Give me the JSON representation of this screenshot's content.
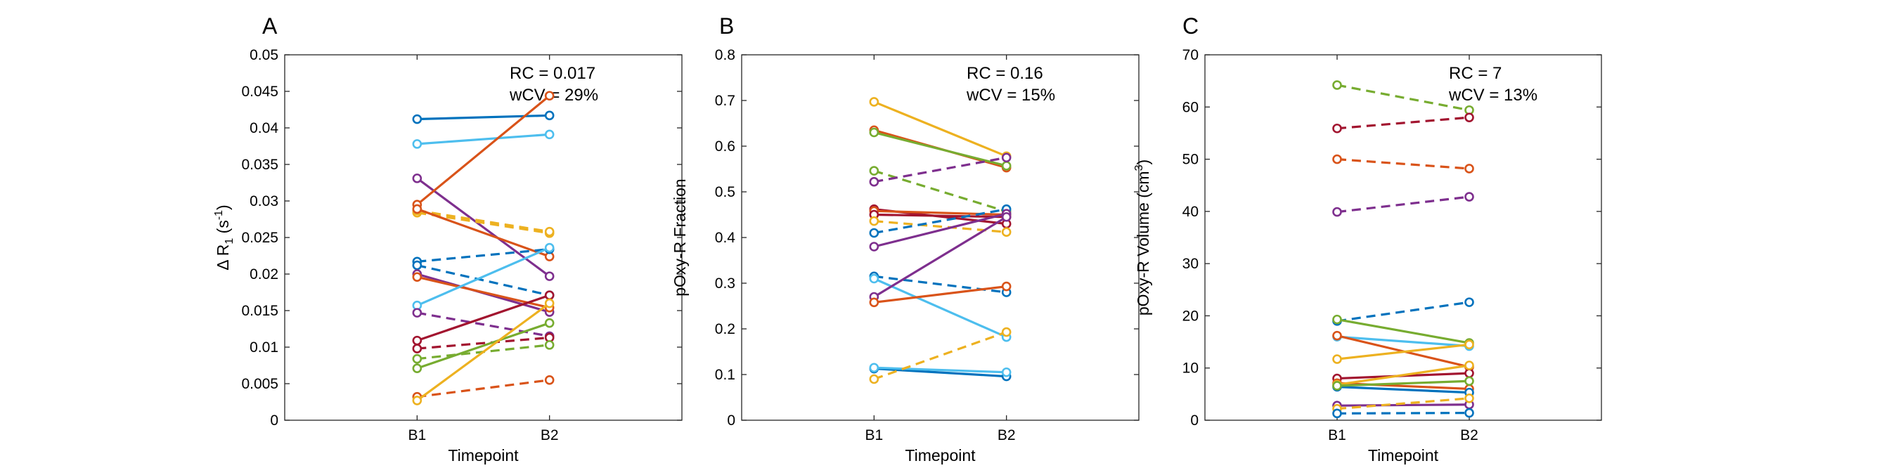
{
  "chart_data": [
    {
      "type": "line",
      "panel_label": "A",
      "xlabel": "Timepoint",
      "ylabel": "Δ R1 (s-1)",
      "ylabel_parts": {
        "pre": "Δ R",
        "sub": "1",
        "mid": " (s",
        "sup": "-1",
        "post": ")"
      },
      "categories": [
        "B1",
        "B2"
      ],
      "xlim": [
        0,
        3
      ],
      "ylim": [
        0,
        0.05
      ],
      "yticks": [
        0,
        0.005,
        0.01,
        0.015,
        0.02,
        0.025,
        0.03,
        0.035,
        0.04,
        0.045,
        0.05
      ],
      "ytick_labels": [
        "0",
        "0.005",
        "0.01",
        "0.015",
        "0.02",
        "0.025",
        "0.03",
        "0.035",
        "0.04",
        "0.045",
        "0.05"
      ],
      "grid": false,
      "annotations": [
        "RC = 0.017",
        "wCV = 29%"
      ],
      "series": [
        {
          "color": "#0072BD",
          "dash": false,
          "values": [
            0.0412,
            0.0417
          ]
        },
        {
          "color": "#4DBEEE",
          "dash": false,
          "values": [
            0.0378,
            0.0391
          ]
        },
        {
          "color": "#7E2F8E",
          "dash": false,
          "values": [
            0.0331,
            0.0197
          ]
        },
        {
          "color": "#D95319",
          "dash": false,
          "values": [
            0.0295,
            0.0444
          ]
        },
        {
          "color": "#EDB120",
          "dash": true,
          "values": [
            0.0284,
            0.0256
          ]
        },
        {
          "color": "#EDB120",
          "dash": true,
          "values": [
            0.0287,
            0.0258
          ]
        },
        {
          "color": "#D95319",
          "dash": false,
          "values": [
            0.0289,
            0.0224
          ]
        },
        {
          "color": "#0072BD",
          "dash": true,
          "values": [
            0.0217,
            0.0234
          ]
        },
        {
          "color": "#0072BD",
          "dash": true,
          "values": [
            0.0212,
            0.0171
          ]
        },
        {
          "color": "#7E2F8E",
          "dash": false,
          "values": [
            0.02,
            0.0148
          ]
        },
        {
          "color": "#D95319",
          "dash": false,
          "values": [
            0.0196,
            0.0154
          ]
        },
        {
          "color": "#4DBEEE",
          "dash": false,
          "values": [
            0.0157,
            0.0236
          ]
        },
        {
          "color": "#7E2F8E",
          "dash": true,
          "values": [
            0.0147,
            0.0115
          ]
        },
        {
          "color": "#A2142F",
          "dash": false,
          "values": [
            0.0109,
            0.0171
          ]
        },
        {
          "color": "#A2142F",
          "dash": true,
          "values": [
            0.0098,
            0.0113
          ]
        },
        {
          "color": "#77AC30",
          "dash": true,
          "values": [
            0.0084,
            0.0103
          ]
        },
        {
          "color": "#77AC30",
          "dash": false,
          "values": [
            0.0071,
            0.0133
          ]
        },
        {
          "color": "#D95319",
          "dash": true,
          "values": [
            0.0032,
            0.0055
          ]
        },
        {
          "color": "#EDB120",
          "dash": false,
          "values": [
            0.0027,
            0.016
          ]
        }
      ]
    },
    {
      "type": "line",
      "panel_label": "B",
      "xlabel": "Timepoint",
      "ylabel": "pOxy-R Fraction",
      "categories": [
        "B1",
        "B2"
      ],
      "xlim": [
        0,
        3
      ],
      "ylim": [
        0,
        0.8
      ],
      "yticks": [
        0,
        0.1,
        0.2,
        0.3,
        0.4,
        0.5,
        0.6,
        0.7,
        0.8
      ],
      "ytick_labels": [
        "0",
        "0.1",
        "0.2",
        "0.3",
        "0.4",
        "0.5",
        "0.6",
        "0.7",
        "0.8"
      ],
      "grid": false,
      "annotations": [
        "RC = 0.16",
        "wCV = 15%"
      ],
      "series": [
        {
          "color": "#EDB120",
          "dash": false,
          "values": [
            0.697,
            0.578
          ]
        },
        {
          "color": "#D95319",
          "dash": false,
          "values": [
            0.635,
            0.553
          ]
        },
        {
          "color": "#77AC30",
          "dash": false,
          "values": [
            0.63,
            0.557
          ]
        },
        {
          "color": "#77AC30",
          "dash": true,
          "values": [
            0.546,
            0.457
          ]
        },
        {
          "color": "#7E2F8E",
          "dash": true,
          "values": [
            0.522,
            0.575
          ]
        },
        {
          "color": "#A2142F",
          "dash": false,
          "values": [
            0.462,
            0.43
          ]
        },
        {
          "color": "#D95319",
          "dash": false,
          "values": [
            0.458,
            0.45
          ]
        },
        {
          "color": "#A2142F",
          "dash": false,
          "values": [
            0.45,
            0.445
          ]
        },
        {
          "color": "#EDB120",
          "dash": true,
          "values": [
            0.436,
            0.412
          ]
        },
        {
          "color": "#0072BD",
          "dash": true,
          "values": [
            0.41,
            0.462
          ]
        },
        {
          "color": "#7E2F8E",
          "dash": false,
          "values": [
            0.38,
            0.452
          ]
        },
        {
          "color": "#0072BD",
          "dash": true,
          "values": [
            0.315,
            0.28
          ]
        },
        {
          "color": "#4DBEEE",
          "dash": false,
          "values": [
            0.31,
            0.182
          ]
        },
        {
          "color": "#7E2F8E",
          "dash": false,
          "values": [
            0.27,
            0.445
          ]
        },
        {
          "color": "#D95319",
          "dash": false,
          "values": [
            0.258,
            0.293
          ]
        },
        {
          "color": "#0072BD",
          "dash": false,
          "values": [
            0.113,
            0.096
          ]
        },
        {
          "color": "#4DBEEE",
          "dash": false,
          "values": [
            0.115,
            0.105
          ]
        },
        {
          "color": "#EDB120",
          "dash": true,
          "values": [
            0.09,
            0.193
          ]
        }
      ]
    },
    {
      "type": "line",
      "panel_label": "C",
      "xlabel": "Timepoint",
      "ylabel": "pOxy-R Volume (cm3)",
      "ylabel_parts": {
        "pre": "pOxy-R Volume (cm",
        "sup": "3",
        "post": ")"
      },
      "categories": [
        "B1",
        "B2"
      ],
      "xlim": [
        0,
        3
      ],
      "ylim": [
        0,
        70
      ],
      "yticks": [
        0,
        10,
        20,
        30,
        40,
        50,
        60,
        70
      ],
      "ytick_labels": [
        "0",
        "10",
        "20",
        "30",
        "40",
        "50",
        "60",
        "70"
      ],
      "grid": false,
      "annotations": [
        "RC = 7",
        "wCV = 13%"
      ],
      "series": [
        {
          "color": "#77AC30",
          "dash": true,
          "values": [
            64.2,
            59.4
          ]
        },
        {
          "color": "#A2142F",
          "dash": true,
          "values": [
            55.9,
            58.0
          ]
        },
        {
          "color": "#D95319",
          "dash": true,
          "values": [
            50.0,
            48.2
          ]
        },
        {
          "color": "#7E2F8E",
          "dash": true,
          "values": [
            39.9,
            42.8
          ]
        },
        {
          "color": "#0072BD",
          "dash": true,
          "values": [
            19.0,
            22.6
          ]
        },
        {
          "color": "#77AC30",
          "dash": false,
          "values": [
            19.3,
            14.8
          ]
        },
        {
          "color": "#4DBEEE",
          "dash": false,
          "values": [
            16.0,
            14.2
          ]
        },
        {
          "color": "#D95319",
          "dash": false,
          "values": [
            16.2,
            10.2
          ]
        },
        {
          "color": "#EDB120",
          "dash": false,
          "values": [
            11.7,
            14.5
          ]
        },
        {
          "color": "#A2142F",
          "dash": false,
          "values": [
            8.0,
            9.0
          ]
        },
        {
          "color": "#D95319",
          "dash": false,
          "values": [
            7.1,
            6.0
          ]
        },
        {
          "color": "#EDB120",
          "dash": false,
          "values": [
            6.8,
            10.5
          ]
        },
        {
          "color": "#0072BD",
          "dash": false,
          "values": [
            6.4,
            5.3
          ]
        },
        {
          "color": "#77AC30",
          "dash": false,
          "values": [
            6.6,
            7.5
          ]
        },
        {
          "color": "#7E2F8E",
          "dash": false,
          "values": [
            2.8,
            3.0
          ]
        },
        {
          "color": "#EDB120",
          "dash": true,
          "values": [
            2.2,
            4.2
          ]
        },
        {
          "color": "#0072BD",
          "dash": true,
          "values": [
            1.3,
            1.4
          ]
        }
      ]
    }
  ]
}
